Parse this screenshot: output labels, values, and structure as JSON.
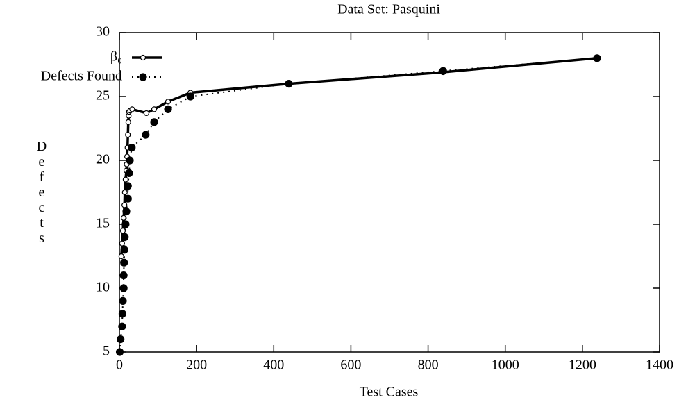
{
  "chart_data": {
    "type": "line",
    "title": "Data Set: Pasquini",
    "x_label": "Test Cases",
    "y_label": "Defects",
    "xlim": [
      0,
      1400
    ],
    "xticks": [
      0,
      200,
      400,
      600,
      800,
      1000,
      1200,
      1400
    ],
    "ylim": [
      5,
      30
    ],
    "yticks": [
      5,
      10,
      15,
      20,
      25,
      30
    ],
    "legend": "top-left",
    "series": [
      {
        "name": "β₀",
        "color": "#000",
        "style": "solid",
        "marker": "open-circle",
        "x": [
          5,
          7,
          9,
          11,
          13,
          14,
          16,
          18,
          19,
          20,
          21,
          22,
          23,
          24,
          25,
          28,
          33,
          70,
          90,
          126,
          184,
          439,
          839,
          1238
        ],
        "values": [
          12.5,
          13.5,
          14.5,
          15.5,
          16.5,
          17.5,
          18.5,
          19.2,
          19.7,
          20.3,
          21,
          22,
          23,
          23.5,
          23.8,
          23.9,
          24,
          23.7,
          24,
          24.6,
          25.3,
          26,
          26.9,
          28
        ]
      },
      {
        "name": "Defects Found",
        "color": "#000",
        "style": "dotted",
        "marker": "filled-circle",
        "x": [
          1,
          3,
          7,
          8,
          9,
          11,
          11,
          12,
          13,
          14,
          16,
          18,
          22,
          22,
          25,
          27,
          32,
          68,
          90,
          126,
          184,
          439,
          839,
          1238
        ],
        "values": [
          5,
          6,
          7,
          8,
          9,
          10,
          11,
          12,
          13,
          14,
          15,
          16,
          17,
          18,
          19,
          20,
          21,
          22,
          23,
          24,
          25,
          26,
          27,
          28
        ]
      }
    ]
  }
}
